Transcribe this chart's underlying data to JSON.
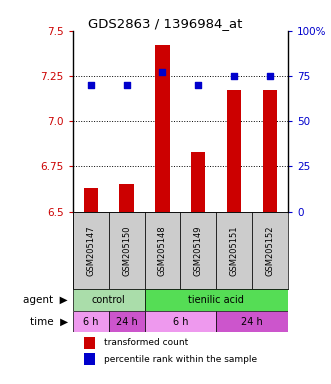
{
  "title": "GDS2863 / 1396984_at",
  "samples": [
    "GSM205147",
    "GSM205150",
    "GSM205148",
    "GSM205149",
    "GSM205151",
    "GSM205152"
  ],
  "bar_values": [
    6.63,
    6.65,
    7.42,
    6.83,
    7.17,
    7.17
  ],
  "percentile_values": [
    70,
    70,
    77,
    70,
    75,
    75
  ],
  "bar_color": "#cc0000",
  "percentile_color": "#0000cc",
  "ylim_left": [
    6.5,
    7.5
  ],
  "ylim_right": [
    0,
    100
  ],
  "yticks_left": [
    6.5,
    6.75,
    7.0,
    7.25,
    7.5
  ],
  "yticks_right": [
    0,
    25,
    50,
    75,
    100
  ],
  "ytick_labels_right": [
    "0",
    "25",
    "50",
    "75",
    "100%"
  ],
  "grid_lines": [
    6.75,
    7.0,
    7.25
  ],
  "agent_labels": [
    {
      "text": "control",
      "start": 0,
      "end": 2,
      "color": "#aaddaa"
    },
    {
      "text": "tienilic acid",
      "start": 2,
      "end": 6,
      "color": "#55dd55"
    }
  ],
  "time_labels": [
    {
      "text": "6 h",
      "start": 0,
      "end": 1,
      "color": "#ee99ee"
    },
    {
      "text": "24 h",
      "start": 1,
      "end": 2,
      "color": "#cc55cc"
    },
    {
      "text": "6 h",
      "start": 2,
      "end": 4,
      "color": "#ee99ee"
    },
    {
      "text": "24 h",
      "start": 4,
      "end": 6,
      "color": "#cc55cc"
    }
  ],
  "legend_items": [
    {
      "label": "transformed count",
      "color": "#cc0000"
    },
    {
      "label": "percentile rank within the sample",
      "color": "#0000cc"
    }
  ],
  "bar_width": 0.4,
  "background_color": "#ffffff",
  "plot_bg_color": "#ffffff",
  "label_area_bg": "#cccccc",
  "figsize": [
    3.31,
    3.84
  ],
  "dpi": 100
}
